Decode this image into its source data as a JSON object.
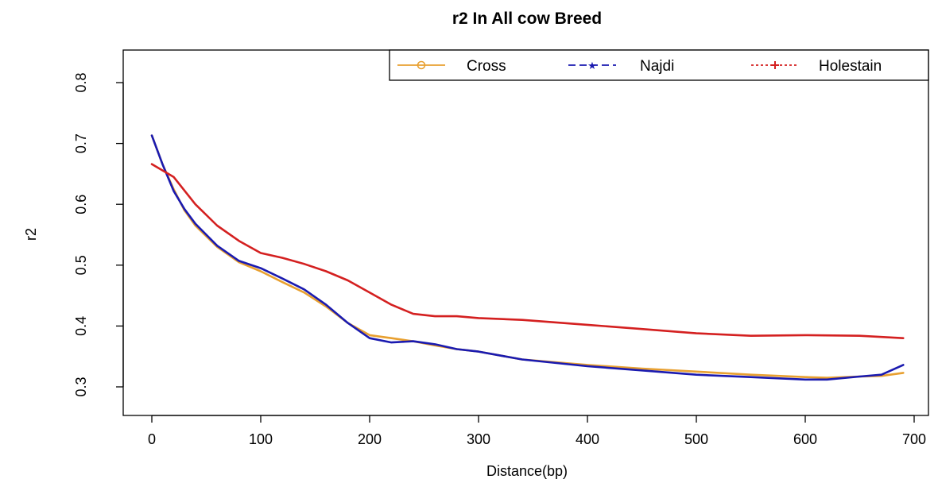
{
  "chart_data": {
    "type": "line",
    "title": "r2 In All cow Breed",
    "xlabel": "Distance(bp)",
    "ylabel": "r2",
    "xlim": [
      0,
      700
    ],
    "ylim": [
      0.28,
      0.86
    ],
    "xticks": [
      0,
      100,
      200,
      300,
      400,
      500,
      600,
      700
    ],
    "yticks": [
      0.3,
      0.4,
      0.5,
      0.6,
      0.7,
      0.8
    ],
    "legend_position": "top-right",
    "grid": false,
    "series": [
      {
        "name": "Cross",
        "color": "#E8A030",
        "line_style": "solid",
        "marker": "circle",
        "x": [
          0,
          10,
          20,
          30,
          40,
          60,
          80,
          100,
          120,
          140,
          160,
          180,
          200,
          220,
          240,
          260,
          280,
          300,
          340,
          400,
          450,
          500,
          550,
          600,
          620,
          650,
          670,
          690
        ],
        "y": [
          0.713,
          0.665,
          0.625,
          0.59,
          0.565,
          0.53,
          0.505,
          0.49,
          0.472,
          0.455,
          0.432,
          0.405,
          0.385,
          0.38,
          0.375,
          0.368,
          0.362,
          0.358,
          0.345,
          0.336,
          0.33,
          0.325,
          0.32,
          0.316,
          0.315,
          0.317,
          0.318,
          0.323
        ]
      },
      {
        "name": "Najdi",
        "color": "#1A1AB0",
        "line_style": "dashed",
        "marker": "star",
        "x": [
          0,
          10,
          20,
          30,
          40,
          60,
          80,
          100,
          120,
          140,
          160,
          180,
          200,
          220,
          240,
          260,
          280,
          300,
          340,
          400,
          450,
          500,
          550,
          600,
          620,
          650,
          670,
          690
        ],
        "y": [
          0.713,
          0.665,
          0.622,
          0.592,
          0.568,
          0.532,
          0.507,
          0.495,
          0.478,
          0.46,
          0.435,
          0.405,
          0.38,
          0.373,
          0.375,
          0.37,
          0.362,
          0.358,
          0.345,
          0.334,
          0.327,
          0.32,
          0.316,
          0.312,
          0.312,
          0.317,
          0.32,
          0.336
        ]
      },
      {
        "name": "Holestain",
        "color": "#D42020",
        "line_style": "dotted",
        "marker": "plus",
        "x": [
          0,
          20,
          40,
          60,
          80,
          100,
          120,
          140,
          160,
          180,
          200,
          220,
          240,
          260,
          280,
          300,
          340,
          400,
          450,
          500,
          550,
          600,
          650,
          690
        ],
        "y": [
          0.666,
          0.645,
          0.6,
          0.565,
          0.54,
          0.52,
          0.512,
          0.502,
          0.49,
          0.475,
          0.455,
          0.435,
          0.42,
          0.416,
          0.416,
          0.413,
          0.41,
          0.402,
          0.395,
          0.388,
          0.384,
          0.385,
          0.384,
          0.38
        ]
      }
    ]
  }
}
